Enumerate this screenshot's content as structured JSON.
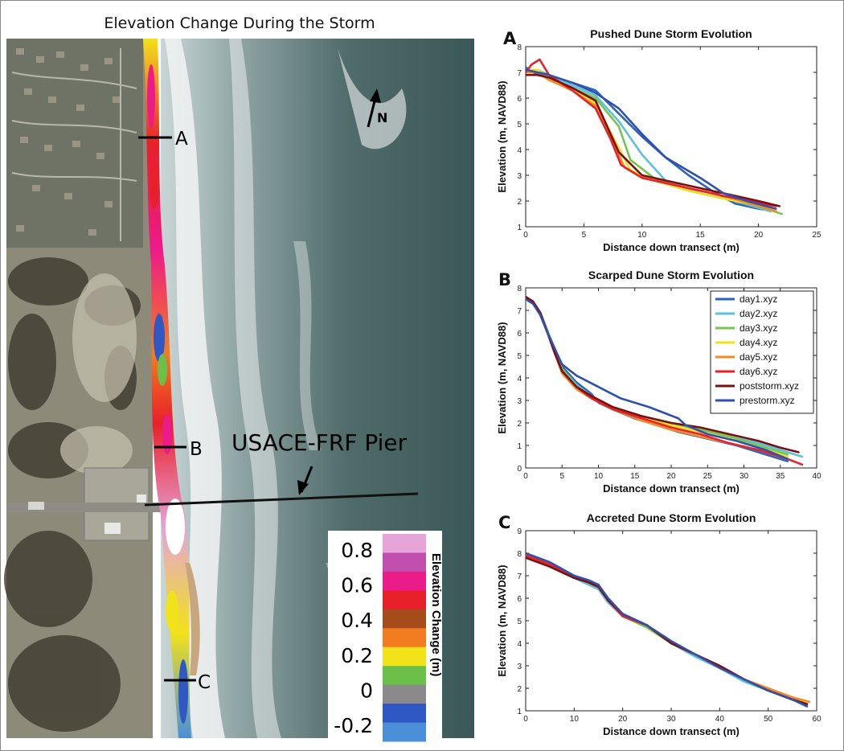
{
  "map": {
    "title": "Elevation Change During the Storm",
    "north_label": "N",
    "pier_label": "USACE-FRF Pier",
    "transects": [
      "A",
      "B",
      "C"
    ],
    "colorbar": {
      "title": "Elevation Change (m)",
      "ticks": [
        "0.8",
        "0.6",
        "0.4",
        "0.2",
        "0",
        "-0.2"
      ],
      "colors": [
        "#e6a4d8",
        "#c04fb0",
        "#ec1b8a",
        "#e8202a",
        "#a64b1c",
        "#f47c20",
        "#f2e21a",
        "#6cc04a",
        "#8a8a8a",
        "#2f58c4",
        "#4a8fd8"
      ]
    }
  },
  "chart_data": [
    {
      "panel": "A",
      "type": "line",
      "title": "Pushed Dune Storm Evolution",
      "xlabel": "Distance down transect (m)",
      "ylabel": "Elevation (m, NAVD88)",
      "xlim": [
        0,
        25
      ],
      "ylim": [
        1,
        8
      ],
      "xticks": [
        0,
        5,
        10,
        15,
        20,
        25
      ],
      "yticks": [
        1,
        2,
        3,
        4,
        5,
        6,
        7,
        8
      ],
      "series": [
        {
          "color": "#2d63b8",
          "x": [
            0,
            1,
            2,
            4,
            6,
            8,
            10,
            12,
            14,
            16,
            18,
            20,
            21.5
          ],
          "y": [
            7.2,
            6.9,
            6.8,
            6.6,
            6.3,
            5.4,
            4.5,
            3.7,
            3.0,
            2.4,
            1.9,
            1.7,
            1.6
          ]
        },
        {
          "color": "#5bc2dc",
          "x": [
            0,
            1,
            2,
            4,
            6,
            8,
            10,
            12,
            15,
            18,
            21
          ],
          "y": [
            7.0,
            7.1,
            6.9,
            6.5,
            6.1,
            5.1,
            3.8,
            2.8,
            2.3,
            2.0,
            1.6
          ]
        },
        {
          "color": "#79c451",
          "x": [
            0,
            1,
            2,
            4,
            6,
            8,
            9,
            11,
            14,
            17,
            20,
            22
          ],
          "y": [
            7.1,
            7.0,
            6.8,
            6.4,
            6.0,
            4.9,
            3.6,
            2.9,
            2.4,
            2.1,
            1.8,
            1.5
          ]
        },
        {
          "color": "#eee11c",
          "x": [
            0,
            1,
            2,
            4,
            6,
            7.5,
            9,
            11,
            14,
            17,
            21.5
          ],
          "y": [
            7.1,
            7.1,
            6.8,
            6.3,
            5.8,
            4.5,
            3.2,
            2.8,
            2.4,
            2.1,
            1.7
          ]
        },
        {
          "color": "#f28c26",
          "x": [
            0,
            1,
            2,
            4,
            6,
            7.5,
            8.5,
            10,
            14,
            17,
            21.5
          ],
          "y": [
            7.0,
            7.0,
            6.7,
            6.3,
            5.7,
            4.3,
            3.3,
            2.9,
            2.5,
            2.2,
            1.6
          ]
        },
        {
          "color": "#e8222a",
          "x": [
            0,
            0.5,
            1.2,
            2,
            4,
            6,
            7.3,
            8.2,
            10,
            14,
            17,
            21.5
          ],
          "y": [
            7.0,
            7.3,
            7.5,
            6.9,
            6.3,
            5.6,
            4.4,
            3.4,
            2.9,
            2.5,
            2.2,
            1.8
          ]
        },
        {
          "color": "#7a1010",
          "x": [
            0,
            1,
            2,
            4,
            6,
            8,
            10,
            13,
            17,
            20,
            21.8
          ],
          "y": [
            6.9,
            6.9,
            6.8,
            6.4,
            5.9,
            3.9,
            3.0,
            2.7,
            2.3,
            2.0,
            1.8
          ]
        },
        {
          "color": "#3050b0",
          "x": [
            0,
            1,
            2,
            4,
            6,
            8,
            10,
            12,
            15,
            17,
            19,
            21.5
          ],
          "y": [
            7.1,
            7.0,
            6.9,
            6.6,
            6.2,
            5.6,
            4.6,
            3.7,
            2.9,
            2.3,
            2.0,
            1.7
          ]
        }
      ]
    },
    {
      "panel": "B",
      "type": "line",
      "title": "Scarped Dune Storm Evolution",
      "xlabel": "Distance down transect (m)",
      "ylabel": "Elevation (m, NAVD88)",
      "xlim": [
        0,
        40
      ],
      "ylim": [
        0,
        8
      ],
      "xticks": [
        0,
        5,
        10,
        15,
        20,
        25,
        30,
        35,
        40
      ],
      "yticks": [
        0,
        1,
        2,
        3,
        4,
        5,
        6,
        7,
        8
      ],
      "legend": [
        "day1.xyz",
        "day2.xyz",
        "day3.xyz",
        "day4.xyz",
        "day5.xyz",
        "day6.xyz",
        "poststorm.xyz",
        "prestorm.xyz"
      ],
      "series": [
        {
          "name": "day1.xyz",
          "color": "#2d63b8",
          "x": [
            0,
            1,
            2,
            3,
            4,
            5,
            7,
            9,
            10,
            12,
            15,
            18,
            21,
            25,
            29,
            33,
            36
          ],
          "y": [
            7.5,
            7.3,
            6.8,
            6.0,
            5.2,
            4.5,
            3.8,
            3.3,
            2.9,
            2.6,
            2.2,
            1.9,
            1.6,
            1.3,
            1.0,
            0.6,
            0.3
          ]
        },
        {
          "name": "day2.xyz",
          "color": "#5bc2dc",
          "x": [
            0,
            1,
            2,
            3,
            4,
            5,
            7,
            9,
            12,
            16,
            20,
            24,
            28,
            32,
            35,
            38
          ],
          "y": [
            7.6,
            7.4,
            6.9,
            6.1,
            5.3,
            4.4,
            3.7,
            3.2,
            2.7,
            2.3,
            2.0,
            1.7,
            1.4,
            1.1,
            0.8,
            0.5
          ]
        },
        {
          "name": "day3.xyz",
          "color": "#79c451",
          "x": [
            0,
            1,
            2,
            3,
            4,
            5,
            7,
            9,
            12,
            16,
            20,
            24,
            28,
            32,
            36
          ],
          "y": [
            7.6,
            7.4,
            6.9,
            6.1,
            5.2,
            4.4,
            3.6,
            3.2,
            2.7,
            2.3,
            2.0,
            1.7,
            1.4,
            1.0,
            0.6
          ]
        },
        {
          "name": "day4.xyz",
          "color": "#eee11c",
          "x": [
            0,
            1,
            2,
            3,
            4,
            5,
            7,
            9,
            12,
            16,
            20,
            24,
            28,
            32,
            36
          ],
          "y": [
            7.5,
            7.3,
            6.8,
            6.0,
            5.1,
            4.3,
            3.6,
            3.1,
            2.6,
            2.2,
            1.9,
            1.6,
            1.3,
            0.9,
            0.5
          ]
        },
        {
          "name": "day5.xyz",
          "color": "#f28c26",
          "x": [
            0,
            1,
            2,
            3,
            4,
            5,
            7,
            9,
            12,
            16,
            20,
            24,
            28,
            32,
            35
          ],
          "y": [
            7.5,
            7.3,
            6.8,
            6.0,
            5.1,
            4.2,
            3.5,
            3.1,
            2.6,
            2.1,
            1.7,
            1.4,
            1.1,
            0.8,
            0.5
          ]
        },
        {
          "name": "day6.xyz",
          "color": "#e8222a",
          "x": [
            0,
            1,
            2,
            3,
            4,
            5,
            7,
            9,
            12,
            16,
            20,
            24,
            28,
            32,
            36,
            38
          ],
          "y": [
            7.6,
            7.4,
            6.9,
            6.0,
            5.1,
            4.3,
            3.6,
            3.1,
            2.6,
            2.2,
            1.8,
            1.5,
            1.1,
            0.8,
            0.4,
            0.15
          ]
        },
        {
          "name": "poststorm.xyz",
          "color": "#7a1010",
          "x": [
            0,
            1,
            2,
            3,
            4,
            5,
            7,
            9,
            12,
            16,
            20,
            24,
            28,
            32,
            35,
            37.5
          ],
          "y": [
            7.6,
            7.4,
            6.9,
            6.0,
            5.1,
            4.3,
            3.6,
            3.2,
            2.7,
            2.3,
            2.0,
            1.8,
            1.5,
            1.2,
            0.9,
            0.7
          ]
        },
        {
          "name": "prestorm.xyz",
          "color": "#3050b0",
          "x": [
            0,
            1,
            2,
            3,
            4,
            5,
            7,
            10,
            13,
            17,
            21,
            22,
            25,
            29,
            33,
            36
          ],
          "y": [
            7.5,
            7.3,
            6.8,
            6.0,
            5.3,
            4.6,
            4.1,
            3.6,
            3.1,
            2.7,
            2.2,
            1.9,
            1.5,
            1.2,
            0.8,
            0.4
          ]
        }
      ]
    },
    {
      "panel": "C",
      "type": "line",
      "title": "Accreted Dune Storm Evolution",
      "xlabel": "Distance down transect (m)",
      "ylabel": "Elevation (m, NAVD88)",
      "xlim": [
        0,
        60
      ],
      "ylim": [
        1,
        9
      ],
      "xticks": [
        0,
        10,
        20,
        30,
        40,
        50,
        60
      ],
      "yticks": [
        1,
        2,
        3,
        4,
        5,
        6,
        7,
        8,
        9
      ],
      "series": [
        {
          "color": "#2d63b8",
          "x": [
            0,
            5,
            10,
            13,
            15,
            17,
            20,
            25,
            30,
            35,
            40,
            45,
            50,
            55,
            58
          ],
          "y": [
            8.0,
            7.5,
            7.0,
            6.7,
            6.5,
            5.9,
            5.3,
            4.8,
            4.0,
            3.5,
            2.9,
            2.4,
            1.9,
            1.5,
            1.3
          ]
        },
        {
          "color": "#5bc2dc",
          "x": [
            0,
            5,
            10,
            13,
            15,
            17,
            20,
            25,
            30,
            35,
            40,
            45,
            50,
            55,
            58
          ],
          "y": [
            7.9,
            7.4,
            6.9,
            6.6,
            6.4,
            5.8,
            5.2,
            4.8,
            4.0,
            3.4,
            2.9,
            2.3,
            1.9,
            1.5,
            1.2
          ]
        },
        {
          "color": "#79c451",
          "x": [
            0,
            5,
            10,
            13,
            15,
            17,
            20,
            25,
            30,
            35,
            40,
            45,
            50,
            55,
            58
          ],
          "y": [
            7.9,
            7.4,
            6.9,
            6.7,
            6.5,
            5.9,
            5.2,
            4.7,
            4.0,
            3.5,
            2.9,
            2.4,
            1.9,
            1.5,
            1.3
          ]
        },
        {
          "color": "#eee11c",
          "x": [
            0,
            5,
            10,
            13,
            15,
            17,
            20,
            25,
            30,
            35,
            40,
            45,
            50,
            55,
            58
          ],
          "y": [
            7.9,
            7.5,
            7.0,
            6.7,
            6.6,
            5.9,
            5.3,
            4.8,
            4.0,
            3.5,
            2.9,
            2.4,
            2.0,
            1.6,
            1.4
          ]
        },
        {
          "color": "#f28c26",
          "x": [
            0,
            5,
            10,
            13,
            15,
            17,
            20,
            25,
            30,
            35,
            40,
            45,
            50,
            55,
            58.5
          ],
          "y": [
            7.9,
            7.5,
            7.0,
            6.7,
            6.5,
            5.9,
            5.2,
            4.8,
            4.0,
            3.5,
            3.0,
            2.4,
            2.0,
            1.6,
            1.4
          ]
        },
        {
          "color": "#e8222a",
          "x": [
            0,
            5,
            10,
            13,
            15,
            17,
            20,
            25,
            30,
            35,
            40,
            45,
            50,
            55,
            58
          ],
          "y": [
            7.9,
            7.5,
            7.0,
            6.7,
            6.6,
            5.9,
            5.2,
            4.8,
            4.0,
            3.5,
            3.0,
            2.4,
            1.9,
            1.5,
            1.3
          ]
        },
        {
          "color": "#7a1010",
          "x": [
            0,
            5,
            10,
            13,
            15,
            17,
            20,
            25,
            30,
            35,
            40,
            45,
            50,
            55,
            58
          ],
          "y": [
            7.8,
            7.4,
            6.9,
            6.7,
            6.5,
            5.9,
            5.3,
            4.8,
            4.0,
            3.5,
            3.0,
            2.4,
            1.9,
            1.5,
            1.3
          ]
        },
        {
          "color": "#3050b0",
          "x": [
            0,
            5,
            10,
            13,
            15,
            17,
            20,
            25,
            30,
            35,
            40,
            45,
            50,
            55,
            58
          ],
          "y": [
            8.0,
            7.6,
            7.0,
            6.8,
            6.6,
            6.0,
            5.3,
            4.8,
            4.1,
            3.5,
            2.9,
            2.4,
            1.9,
            1.5,
            1.2
          ]
        }
      ]
    }
  ]
}
